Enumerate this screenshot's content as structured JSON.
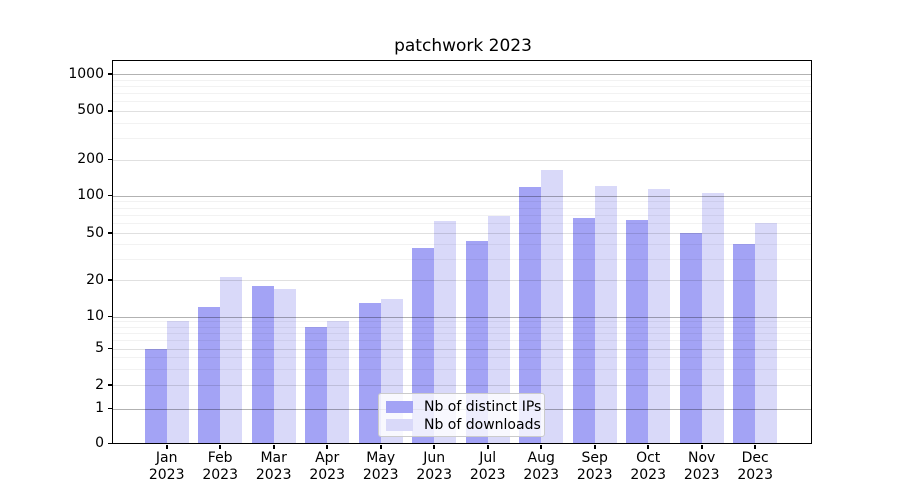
{
  "chart_data": {
    "type": "bar",
    "title": "patchwork 2023",
    "categories": [
      "Jan",
      "Feb",
      "Mar",
      "Apr",
      "May",
      "Jun",
      "Jul",
      "Aug",
      "Sep",
      "Oct",
      "Nov",
      "Dec"
    ],
    "year": "2023",
    "series": [
      {
        "name": "Nb of distinct IPs",
        "color": "#a3a3f5",
        "values": [
          5,
          12,
          18,
          8,
          13,
          37,
          43,
          118,
          66,
          63,
          50,
          40
        ]
      },
      {
        "name": "Nb of downloads",
        "color": "#d9d9f9",
        "values": [
          9,
          21,
          17,
          9,
          14,
          62,
          68,
          163,
          120,
          113,
          104,
          60
        ]
      }
    ],
    "yscale": "symlog",
    "yticks": [
      0,
      1,
      2,
      5,
      10,
      20,
      50,
      100,
      200,
      500,
      1000
    ],
    "ylim": [
      0,
      1500
    ],
    "grid": true,
    "legend_position": "inside lower-center"
  }
}
